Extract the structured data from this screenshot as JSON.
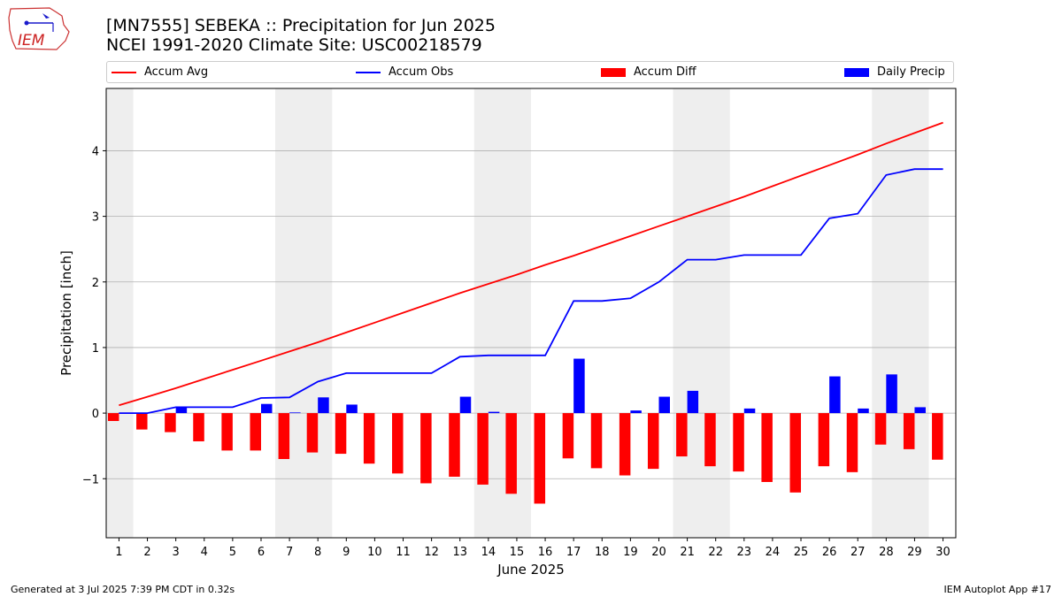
{
  "header": {
    "title": "[MN7555] SEBEKA :: Precipitation for Jun 2025",
    "subtitle": "NCEI 1991-2020 Climate Site: USC00218579",
    "logo_text": "IEM"
  },
  "footer": {
    "left": "Generated at 3 Jul 2025 7:39 PM CDT in 0.32s",
    "right": "IEM Autoplot App #17"
  },
  "chart_data": {
    "type": "bar",
    "xlabel": "June 2025",
    "ylabel": "Precipitation [inch]",
    "xlim": [
      0.55,
      30.45
    ],
    "ylim": [
      -1.9,
      4.95
    ],
    "yticks": [
      -1,
      0,
      1,
      2,
      3,
      4
    ],
    "ytick_labels": [
      "−1",
      "0",
      "1",
      "2",
      "3",
      "4"
    ],
    "grid": "horizontal",
    "legend_position": "top",
    "weekend_bands": [
      [
        0.5,
        1.5
      ],
      [
        6.5,
        8.5
      ],
      [
        13.5,
        15.5
      ],
      [
        20.5,
        22.5
      ],
      [
        27.5,
        29.5
      ]
    ],
    "x": [
      1,
      2,
      3,
      4,
      5,
      6,
      7,
      8,
      9,
      10,
      11,
      12,
      13,
      14,
      15,
      16,
      17,
      18,
      19,
      20,
      21,
      22,
      23,
      24,
      25,
      26,
      27,
      28,
      29,
      30
    ],
    "series": [
      {
        "name": "Accum Avg",
        "kind": "line",
        "color": "#ff0000",
        "values": [
          0.12,
          0.25,
          0.38,
          0.52,
          0.66,
          0.8,
          0.94,
          1.08,
          1.23,
          1.38,
          1.53,
          1.68,
          1.83,
          1.97,
          2.11,
          2.26,
          2.4,
          2.55,
          2.7,
          2.85,
          3.0,
          3.15,
          3.3,
          3.46,
          3.62,
          3.78,
          3.94,
          4.11,
          4.27,
          4.43
        ]
      },
      {
        "name": "Accum Obs",
        "kind": "line",
        "color": "#0000ff",
        "values": [
          0.0,
          0.0,
          0.09,
          0.09,
          0.09,
          0.23,
          0.24,
          0.48,
          0.61,
          0.61,
          0.61,
          0.61,
          0.86,
          0.88,
          0.88,
          0.88,
          1.71,
          1.71,
          1.75,
          2.0,
          2.34,
          2.34,
          2.41,
          2.41,
          2.41,
          2.97,
          3.04,
          3.63,
          3.72,
          3.72
        ]
      },
      {
        "name": "Accum Diff",
        "kind": "bar",
        "color": "#ff0000",
        "values": [
          -0.12,
          -0.25,
          -0.29,
          -0.43,
          -0.57,
          -0.57,
          -0.7,
          -0.6,
          -0.62,
          -0.77,
          -0.92,
          -1.07,
          -0.97,
          -1.09,
          -1.23,
          -1.38,
          -0.69,
          -0.84,
          -0.95,
          -0.85,
          -0.66,
          -0.81,
          -0.89,
          -1.05,
          -1.21,
          -0.81,
          -0.9,
          -0.48,
          -0.55,
          -0.71
        ]
      },
      {
        "name": "Daily Precip",
        "kind": "bar",
        "color": "#0000ff",
        "values": [
          0.0,
          0.0,
          0.09,
          0.0,
          0.0,
          0.14,
          0.01,
          0.24,
          0.13,
          0.0,
          0.0,
          0.0,
          0.25,
          0.02,
          0.0,
          0.0,
          0.83,
          0.0,
          0.04,
          0.25,
          0.34,
          0.0,
          0.07,
          0.0,
          0.0,
          0.56,
          0.07,
          0.59,
          0.09,
          0.0
        ]
      }
    ]
  }
}
